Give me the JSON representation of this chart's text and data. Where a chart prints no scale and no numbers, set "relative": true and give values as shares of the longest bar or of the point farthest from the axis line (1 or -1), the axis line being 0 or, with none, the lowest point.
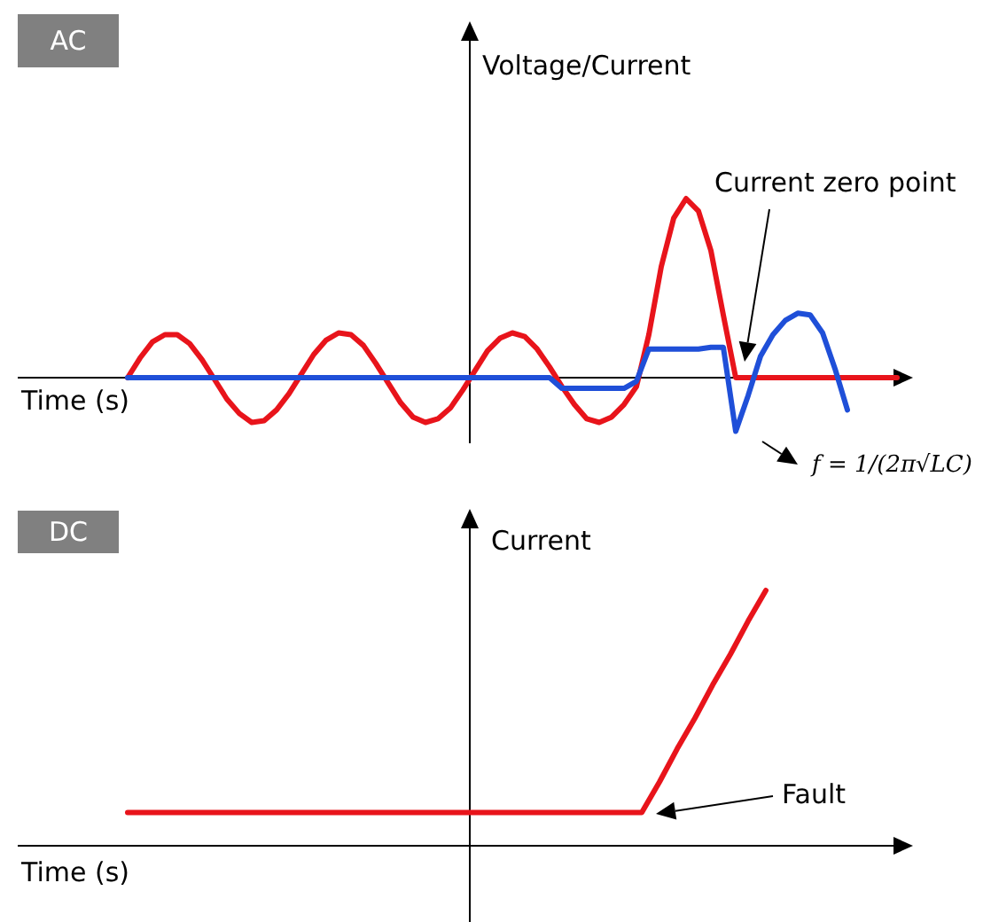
{
  "chart_data": [
    {
      "type": "line",
      "title": "AC",
      "xlabel": "Time (s)",
      "ylabel": "Voltage/Current",
      "relative": true,
      "categories": [
        null,
        null,
        null,
        null,
        null,
        null,
        null,
        null,
        null,
        null,
        null,
        null,
        null,
        null,
        null,
        null,
        null,
        null,
        null,
        null,
        null,
        null,
        null,
        null,
        null,
        null,
        null,
        null,
        null,
        null,
        null,
        null,
        null,
        null,
        null,
        null,
        null,
        null,
        null,
        null,
        null,
        null,
        null,
        null,
        null,
        null,
        null,
        null,
        null,
        null,
        null,
        null,
        null,
        null,
        null,
        null,
        null,
        null,
        null,
        null,
        null,
        null,
        null
      ],
      "series": [
        {
          "color": "#e8141b",
          "values": [
            0,
            0.11,
            0.2,
            0.24,
            0.24,
            0.19,
            0.1,
            -0.01,
            -0.12,
            -0.2,
            -0.25,
            -0.24,
            -0.18,
            -0.09,
            0.02,
            0.13,
            0.21,
            0.25,
            0.24,
            0.18,
            0.08,
            -0.03,
            -0.14,
            -0.22,
            -0.25,
            -0.23,
            -0.17,
            -0.07,
            0.04,
            0.15,
            0.22,
            0.25,
            0.23,
            0.16,
            0.06,
            -0.05,
            -0.15,
            -0.23,
            -0.25,
            -0.22,
            -0.15,
            -0.05,
            0.24,
            0.62,
            0.89,
            1,
            0.93,
            0.71,
            0.35,
            0,
            0,
            0,
            0,
            0,
            0,
            0,
            0,
            0,
            0,
            0,
            0,
            0,
            0
          ]
        },
        {
          "color": "#1f4fd8",
          "values": [
            0,
            0,
            0,
            0,
            0,
            0,
            0,
            0,
            0,
            0,
            0,
            0,
            0,
            0,
            0,
            0,
            0,
            0,
            0,
            0,
            0,
            0,
            0,
            0,
            0,
            0,
            0,
            0,
            0,
            0,
            0,
            0,
            0,
            0,
            0,
            -0.06,
            -0.06,
            -0.06,
            -0.06,
            -0.06,
            -0.06,
            -0.02,
            0.16,
            0.16,
            0.16,
            0.16,
            0.16,
            0.17,
            0.17,
            -0.3,
            -0.1,
            0.12,
            0.24,
            0.32,
            0.36,
            0.35,
            0.25,
            0.05,
            -0.18,
            null,
            null,
            null,
            null
          ]
        }
      ],
      "annotations": [
        "Current zero point",
        "f = 1/(2π√LC)"
      ]
    },
    {
      "type": "line",
      "title": "DC",
      "xlabel": "Time (s)",
      "ylabel": "Current",
      "relative": true,
      "categories": [
        null,
        null,
        null,
        null,
        null,
        null,
        null,
        null,
        null,
        null,
        null,
        null,
        null,
        null,
        null,
        null,
        null,
        null,
        null,
        null,
        null,
        null,
        null,
        null,
        null,
        null,
        null,
        null,
        null,
        null,
        null,
        null,
        null,
        null,
        null,
        null,
        null,
        null,
        null,
        null,
        null,
        null,
        null,
        null,
        null
      ],
      "series": [
        {
          "color": "#e8141b",
          "values": [
            0.13,
            0.13,
            0.13,
            0.13,
            0.13,
            0.13,
            0.13,
            0.13,
            0.13,
            0.13,
            0.13,
            0.13,
            0.13,
            0.13,
            0.13,
            0.13,
            0.13,
            0.13,
            0.13,
            0.13,
            0.13,
            0.13,
            0.13,
            0.13,
            0.13,
            0.13,
            0.13,
            0.13,
            0.13,
            0.13,
            0.25,
            0.38,
            0.5,
            0.63,
            0.75,
            0.88,
            1,
            null,
            null,
            null,
            null,
            null,
            null,
            null,
            null
          ]
        }
      ],
      "annotations": [
        "Fault"
      ]
    }
  ]
}
